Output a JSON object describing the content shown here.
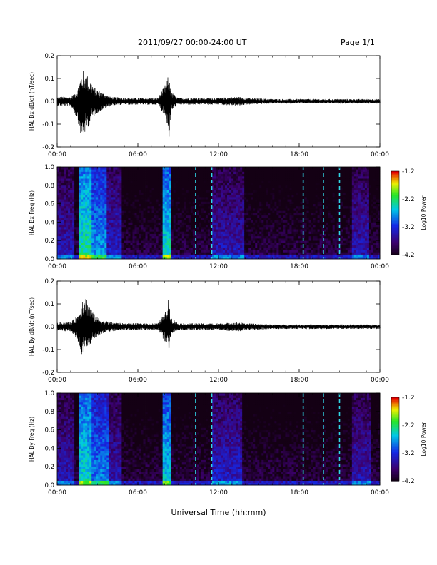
{
  "header": {
    "title": "2011/09/27  00:00-24:00 UT",
    "page": "Page 1/1"
  },
  "footer": {
    "xlabel": "Universal Time (hh:mm)"
  },
  "colorbar": {
    "label": "Log10 Power",
    "ticks": [
      "-1.2",
      "-2.2",
      "-3.2",
      "-4.2"
    ],
    "range": [
      -4.2,
      -1.2
    ]
  },
  "chart_data": [
    {
      "type": "line",
      "ylabel": "HAL Bx dB/dt (nT/sec)",
      "xlim": [
        "00:00",
        "24:00"
      ],
      "ylim": [
        -0.2,
        0.2
      ],
      "xticks": [
        "00:00",
        "06:00",
        "12:00",
        "18:00",
        "00:00"
      ],
      "yticks": [
        "0.2",
        "0.1",
        "0.0",
        "-0.1",
        "-0.2"
      ],
      "envelope_hours": [
        0,
        1.0,
        1.5,
        1.8,
        2.0,
        2.4,
        2.8,
        3.3,
        4.0,
        5.0,
        6.0,
        7.5,
        8.1,
        8.3,
        8.5,
        9.0,
        10.0,
        12.0,
        13.5,
        14.0,
        16.0,
        18.0,
        20.0,
        22.0,
        24.0
      ],
      "envelope_max": [
        0.02,
        0.02,
        0.05,
        0.12,
        0.14,
        0.1,
        0.06,
        0.04,
        0.02,
        0.015,
        0.015,
        0.015,
        0.08,
        0.12,
        0.04,
        0.015,
        0.015,
        0.015,
        0.02,
        0.015,
        0.01,
        0.01,
        0.01,
        0.01,
        0.01
      ],
      "envelope_min": [
        -0.02,
        -0.02,
        -0.08,
        -0.17,
        -0.15,
        -0.1,
        -0.06,
        -0.04,
        -0.02,
        -0.015,
        -0.015,
        -0.015,
        -0.08,
        -0.17,
        -0.04,
        -0.015,
        -0.015,
        -0.015,
        -0.02,
        -0.015,
        -0.01,
        -0.01,
        -0.01,
        -0.01,
        -0.01
      ]
    },
    {
      "type": "heatmap",
      "ylabel": "HAL Bx Freq (Hz)",
      "xlim": [
        "00:00",
        "24:00"
      ],
      "ylim": [
        0.0,
        1.0
      ],
      "xticks": [
        "00:00",
        "06:00",
        "12:00",
        "18:00",
        "00:00"
      ],
      "yticks": [
        "1.0",
        "0.8",
        "0.6",
        "0.4",
        "0.2",
        "0.0"
      ],
      "zlim": [
        -4.2,
        -1.2
      ],
      "bands": [
        {
          "t0": 0.0,
          "t1": 1.3,
          "level": -3.4
        },
        {
          "t0": 1.6,
          "t1": 2.5,
          "level": -2.3
        },
        {
          "t0": 2.5,
          "t1": 3.6,
          "level": -2.7
        },
        {
          "t0": 3.6,
          "t1": 4.8,
          "level": -3.3
        },
        {
          "t0": 7.9,
          "t1": 8.5,
          "level": -2.4
        },
        {
          "t0": 11.5,
          "t1": 14.0,
          "level": -3.4
        },
        {
          "t0": 22.0,
          "t1": 23.2,
          "level": -3.4
        }
      ]
    },
    {
      "type": "line",
      "ylabel": "HAL By dB/dt (nT/sec)",
      "xlim": [
        "00:00",
        "24:00"
      ],
      "ylim": [
        -0.2,
        0.2
      ],
      "xticks": [
        "00:00",
        "06:00",
        "12:00",
        "18:00",
        "00:00"
      ],
      "yticks": [
        "0.2",
        "0.1",
        "0.0",
        "-0.1",
        "-0.2"
      ],
      "envelope_hours": [
        0,
        1.0,
        1.5,
        1.8,
        2.0,
        2.4,
        2.8,
        3.3,
        4.0,
        5.0,
        6.0,
        7.5,
        8.1,
        8.3,
        8.5,
        9.0,
        10.0,
        12.0,
        13.5,
        14.0,
        16.0,
        18.0,
        20.0,
        22.0,
        24.0
      ],
      "envelope_max": [
        0.02,
        0.02,
        0.05,
        0.1,
        0.16,
        0.1,
        0.05,
        0.03,
        0.02,
        0.015,
        0.015,
        0.015,
        0.07,
        0.13,
        0.04,
        0.015,
        0.015,
        0.015,
        0.02,
        0.015,
        0.01,
        0.01,
        0.01,
        0.01,
        0.01
      ],
      "envelope_min": [
        -0.02,
        -0.02,
        -0.06,
        -0.12,
        -0.11,
        -0.08,
        -0.05,
        -0.03,
        -0.02,
        -0.015,
        -0.015,
        -0.015,
        -0.08,
        -0.1,
        -0.03,
        -0.015,
        -0.015,
        -0.015,
        -0.02,
        -0.015,
        -0.01,
        -0.01,
        -0.01,
        -0.01,
        -0.01
      ]
    },
    {
      "type": "heatmap",
      "ylabel": "HAL By Freq (Hz)",
      "xlim": [
        "00:00",
        "24:00"
      ],
      "ylim": [
        0.0,
        1.0
      ],
      "xticks": [
        "00:00",
        "06:00",
        "12:00",
        "18:00",
        "00:00"
      ],
      "yticks": [
        "1.0",
        "0.8",
        "0.6",
        "0.4",
        "0.2",
        "0.0"
      ],
      "zlim": [
        -4.2,
        -1.2
      ],
      "bands": [
        {
          "t0": 0.0,
          "t1": 1.3,
          "level": -3.4
        },
        {
          "t0": 1.6,
          "t1": 2.6,
          "level": -2.4
        },
        {
          "t0": 2.6,
          "t1": 3.8,
          "level": -2.8
        },
        {
          "t0": 3.8,
          "t1": 4.8,
          "level": -3.4
        },
        {
          "t0": 7.9,
          "t1": 8.5,
          "level": -2.5
        },
        {
          "t0": 11.5,
          "t1": 13.8,
          "level": -3.3
        },
        {
          "t0": 22.0,
          "t1": 23.3,
          "level": -3.4
        }
      ]
    }
  ]
}
